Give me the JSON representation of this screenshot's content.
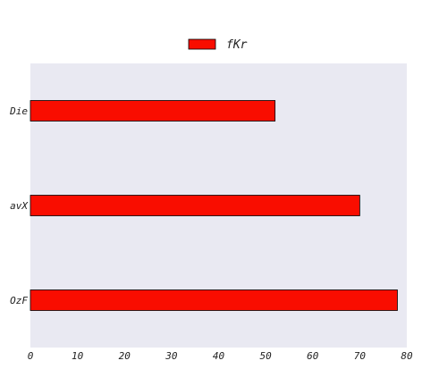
{
  "chart_data": {
    "type": "bar",
    "orientation": "horizontal",
    "title": "",
    "xlabel": "",
    "ylabel": "",
    "categories": [
      "Die",
      "avX",
      "OzF"
    ],
    "series": [
      {
        "name": "fKr",
        "values": [
          52,
          70,
          78
        ],
        "color": "#f90d00"
      }
    ],
    "xlim": [
      0,
      80
    ],
    "xticks": [
      0,
      10,
      20,
      30,
      40,
      50,
      60,
      70,
      80
    ],
    "grid": false,
    "background": "#e9e9f2",
    "legend_position": "top-center"
  }
}
